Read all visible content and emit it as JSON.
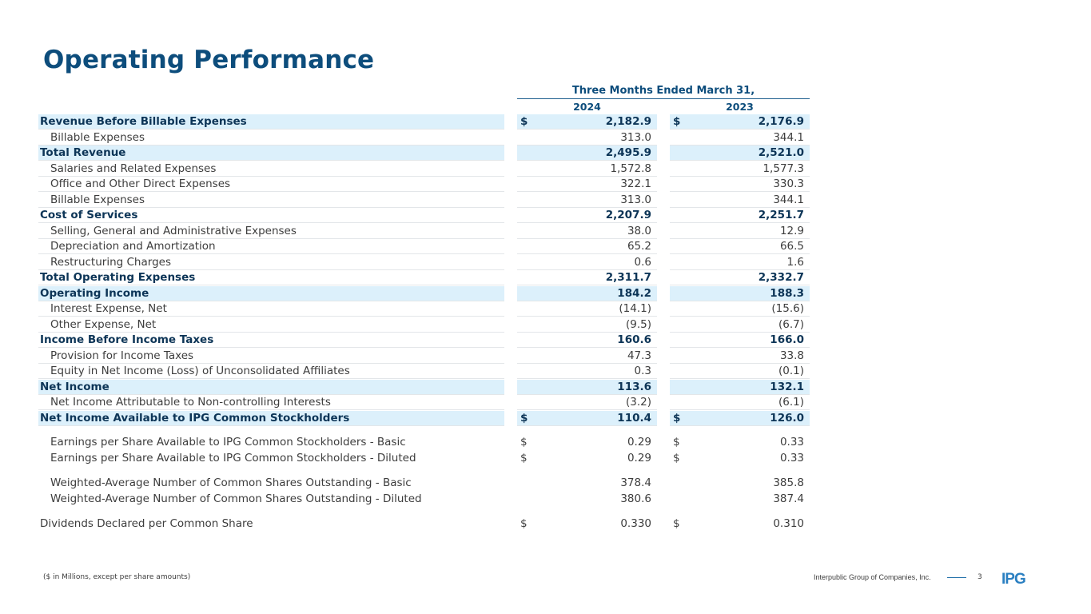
{
  "title": "Operating Performance",
  "table": {
    "period_header": "Three Months Ended March 31,",
    "columns": [
      "2024",
      "2023"
    ],
    "rows": [
      {
        "label": "Revenue Before Billable Expenses",
        "v1": "2,182.9",
        "v2": "2,176.9",
        "cur1": "$",
        "cur2": "$",
        "style": "highlight"
      },
      {
        "label": "Billable Expenses",
        "v1": "313.0",
        "v2": "344.1",
        "cur1": "",
        "cur2": "",
        "style": "indent"
      },
      {
        "label": "Total Revenue",
        "v1": "2,495.9",
        "v2": "2,521.0",
        "cur1": "",
        "cur2": "",
        "style": "highlight"
      },
      {
        "label": "Salaries and Related Expenses",
        "v1": "1,572.8",
        "v2": "1,577.3",
        "cur1": "",
        "cur2": "",
        "style": "indent"
      },
      {
        "label": "Office and Other Direct Expenses",
        "v1": "322.1",
        "v2": "330.3",
        "cur1": "",
        "cur2": "",
        "style": "indent"
      },
      {
        "label": "Billable Expenses",
        "v1": "313.0",
        "v2": "344.1",
        "cur1": "",
        "cur2": "",
        "style": "indent"
      },
      {
        "label": "Cost of Services",
        "v1": "2,207.9",
        "v2": "2,251.7",
        "cur1": "",
        "cur2": "",
        "style": "bold"
      },
      {
        "label": "Selling, General and Administrative Expenses",
        "v1": "38.0",
        "v2": "12.9",
        "cur1": "",
        "cur2": "",
        "style": "indent"
      },
      {
        "label": "Depreciation and Amortization",
        "v1": "65.2",
        "v2": "66.5",
        "cur1": "",
        "cur2": "",
        "style": "indent"
      },
      {
        "label": "Restructuring Charges",
        "v1": "0.6",
        "v2": "1.6",
        "cur1": "",
        "cur2": "",
        "style": "indent"
      },
      {
        "label": "Total Operating Expenses",
        "v1": "2,311.7",
        "v2": "2,332.7",
        "cur1": "",
        "cur2": "",
        "style": "bold"
      },
      {
        "label": "Operating Income",
        "v1": "184.2",
        "v2": "188.3",
        "cur1": "",
        "cur2": "",
        "style": "highlight"
      },
      {
        "label": "Interest Expense, Net",
        "v1": "(14.1)",
        "v2": "(15.6)",
        "cur1": "",
        "cur2": "",
        "style": "indent"
      },
      {
        "label": "Other Expense, Net",
        "v1": "(9.5)",
        "v2": "(6.7)",
        "cur1": "",
        "cur2": "",
        "style": "indent"
      },
      {
        "label": "Income Before Income Taxes",
        "v1": "160.6",
        "v2": "166.0",
        "cur1": "",
        "cur2": "",
        "style": "bold"
      },
      {
        "label": "Provision for Income Taxes",
        "v1": "47.3",
        "v2": "33.8",
        "cur1": "",
        "cur2": "",
        "style": "indent"
      },
      {
        "label": "Equity in Net Income (Loss) of Unconsolidated Affiliates",
        "v1": "0.3",
        "v2": "(0.1)",
        "cur1": "",
        "cur2": "",
        "style": "indent"
      },
      {
        "label": "Net Income",
        "v1": "113.6",
        "v2": "132.1",
        "cur1": "",
        "cur2": "",
        "style": "highlight"
      },
      {
        "label": "Net Income Attributable to Non-controlling Interests",
        "v1": "(3.2)",
        "v2": "(6.1)",
        "cur1": "",
        "cur2": "",
        "style": "indent"
      },
      {
        "label": "Net Income Available to IPG Common Stockholders",
        "v1": "110.4",
        "v2": "126.0",
        "cur1": "$",
        "cur2": "$",
        "style": "highlight"
      }
    ],
    "per_share": [
      {
        "label": "Earnings per Share Available to IPG Common Stockholders - Basic",
        "v1": "0.29",
        "v2": "0.33",
        "cur1": "$",
        "cur2": "$"
      },
      {
        "label": "Earnings per Share Available to IPG Common Stockholders - Diluted",
        "v1": "0.29",
        "v2": "0.33",
        "cur1": "$",
        "cur2": "$"
      }
    ],
    "shares": [
      {
        "label": "Weighted-Average Number of Common Shares Outstanding - Basic",
        "v1": "378.4",
        "v2": "385.8",
        "cur1": "",
        "cur2": ""
      },
      {
        "label": "Weighted-Average Number of Common Shares Outstanding - Diluted",
        "v1": "380.6",
        "v2": "387.4",
        "cur1": "",
        "cur2": ""
      }
    ],
    "dividends": {
      "label": "Dividends Declared per Common Share",
      "v1": "0.330",
      "v2": "0.310",
      "cur1": "$",
      "cur2": "$"
    }
  },
  "footer": {
    "note": "($ in Millions, except per share amounts)",
    "company": "Interpublic Group of Companies, Inc.",
    "page": "3",
    "logo_text": "IPG"
  },
  "colors": {
    "title": "#0d4d7c",
    "highlight": "#dcf0fb",
    "logo": "#2a7fc1"
  }
}
